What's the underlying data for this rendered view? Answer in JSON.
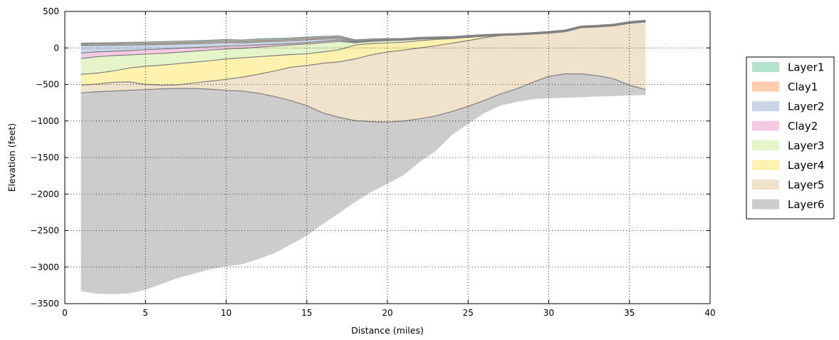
{
  "chart_data": {
    "type": "area",
    "title": "",
    "xlabel": "Distance (miles)",
    "ylabel": "Elevation (feet)",
    "xlim": [
      0,
      40
    ],
    "ylim": [
      -3500,
      500
    ],
    "xticks": [
      0,
      5,
      10,
      15,
      20,
      25,
      30,
      35,
      40
    ],
    "yticks": [
      500,
      0,
      -500,
      -1000,
      -1500,
      -2000,
      -2500,
      -3000,
      -3500
    ],
    "grid": true,
    "legend_position": "right",
    "legend": [
      "Layer1",
      "Clay1",
      "Layer2",
      "Clay2",
      "Layer3",
      "Layer4",
      "Layer5",
      "Layer6"
    ],
    "colors": {
      "Layer1": "#b3e2cd",
      "Clay1": "#fdcdac",
      "Layer2": "#cbd5e8",
      "Clay2": "#f4cae4",
      "Layer3": "#e6f5c9",
      "Layer4": "#fff2ae",
      "Layer5": "#f1e2cc",
      "Layer6": "#cccccc",
      "boundary": "#808080"
    },
    "x": [
      1,
      2,
      3,
      4,
      5,
      6,
      7,
      8,
      9,
      10,
      11,
      12,
      13,
      14,
      15,
      16,
      17,
      18,
      19,
      20,
      21,
      22,
      23,
      24,
      25,
      26,
      27,
      28,
      29,
      30,
      31,
      32,
      33,
      34,
      35,
      36
    ],
    "boundaries": [
      {
        "name": "top",
        "values": [
          65,
          68,
          72,
          76,
          80,
          86,
          92,
          98,
          105,
          115,
          108,
          122,
          128,
          135,
          148,
          158,
          165,
          110,
          122,
          128,
          130,
          145,
          150,
          155,
          170,
          182,
          192,
          198,
          210,
          225,
          245,
          300,
          310,
          325,
          360,
          380
        ]
      },
      {
        "name": "Layer1/Clay1",
        "values": [
          50,
          52,
          55,
          58,
          62,
          66,
          72,
          78,
          85,
          95,
          88,
          100,
          108,
          115,
          130,
          140,
          148,
          95,
          108,
          115,
          118,
          132,
          138,
          145,
          160,
          172,
          182,
          190,
          200,
          215,
          235,
          290,
          300,
          315,
          350,
          370
        ]
      },
      {
        "name": "Clay1/Layer2",
        "values": [
          35,
          36,
          38,
          40,
          44,
          48,
          54,
          60,
          66,
          75,
          70,
          82,
          90,
          98,
          112,
          122,
          130,
          85,
          100,
          108,
          112,
          126,
          132,
          140,
          155,
          168,
          178,
          185,
          196,
          210,
          228,
          285,
          295,
          310,
          345,
          365
        ]
      },
      {
        "name": "Layer2/Clay2",
        "values": [
          -70,
          -55,
          -45,
          -35,
          -25,
          -15,
          -5,
          5,
          15,
          25,
          30,
          40,
          50,
          60,
          75,
          90,
          110,
          75,
          95,
          104,
          110,
          124,
          130,
          138,
          152,
          165,
          176,
          183,
          194,
          208,
          226,
          282,
          292,
          308,
          342,
          362
        ]
      },
      {
        "name": "Clay2/Layer3",
        "values": [
          -145,
          -120,
          -105,
          -95,
          -85,
          -75,
          -60,
          -45,
          -30,
          -15,
          -5,
          10,
          25,
          40,
          55,
          70,
          90,
          70,
          90,
          100,
          106,
          120,
          127,
          135,
          150,
          163,
          174,
          181,
          192,
          206,
          224,
          280,
          290,
          305,
          340,
          360
        ]
      },
      {
        "name": "Layer3/Layer4",
        "values": [
          -360,
          -345,
          -315,
          -275,
          -250,
          -235,
          -215,
          -195,
          -175,
          -150,
          -135,
          -120,
          -105,
          -90,
          -80,
          -55,
          -25,
          40,
          60,
          70,
          78,
          100,
          115,
          128,
          145,
          160,
          172,
          180,
          190,
          204,
          222,
          278,
          288,
          303,
          338,
          358
        ]
      },
      {
        "name": "Layer4/Layer5",
        "values": [
          -510,
          -495,
          -470,
          -465,
          -500,
          -510,
          -505,
          -480,
          -455,
          -430,
          -400,
          -360,
          -315,
          -265,
          -240,
          -210,
          -190,
          -150,
          -95,
          -55,
          -30,
          0,
          30,
          65,
          100,
          140,
          170,
          178,
          188,
          202,
          220,
          276,
          286,
          301,
          336,
          356
        ]
      },
      {
        "name": "Layer5/Layer6",
        "values": [
          -615,
          -600,
          -590,
          -580,
          -570,
          -560,
          -555,
          -555,
          -565,
          -580,
          -590,
          -620,
          -665,
          -720,
          -790,
          -890,
          -950,
          -995,
          -1010,
          -1015,
          -1000,
          -970,
          -930,
          -870,
          -800,
          -720,
          -630,
          -560,
          -470,
          -390,
          -355,
          -355,
          -380,
          -420,
          -510,
          -570
        ]
      },
      {
        "name": "bottom",
        "values": [
          -3330,
          -3365,
          -3370,
          -3360,
          -3310,
          -3230,
          -3150,
          -3090,
          -3030,
          -2990,
          -2960,
          -2890,
          -2810,
          -2690,
          -2570,
          -2410,
          -2260,
          -2110,
          -1970,
          -1860,
          -1740,
          -1560,
          -1410,
          -1190,
          -1040,
          -890,
          -790,
          -740,
          -700,
          -690,
          -680,
          -675,
          -665,
          -660,
          -650,
          -645
        ]
      }
    ],
    "series": [
      {
        "name": "Layer1",
        "upper": "top",
        "lower": "Layer1/Clay1"
      },
      {
        "name": "Clay1",
        "upper": "Layer1/Clay1",
        "lower": "Clay1/Layer2"
      },
      {
        "name": "Layer2",
        "upper": "Clay1/Layer2",
        "lower": "Layer2/Clay2"
      },
      {
        "name": "Clay2",
        "upper": "Layer2/Clay2",
        "lower": "Clay2/Layer3"
      },
      {
        "name": "Layer3",
        "upper": "Clay2/Layer3",
        "lower": "Layer3/Layer4"
      },
      {
        "name": "Layer4",
        "upper": "Layer3/Layer4",
        "lower": "Layer4/Layer5"
      },
      {
        "name": "Layer5",
        "upper": "Layer4/Layer5",
        "lower": "Layer5/Layer6"
      },
      {
        "name": "Layer6",
        "upper": "Layer5/Layer6",
        "lower": "bottom"
      }
    ]
  }
}
